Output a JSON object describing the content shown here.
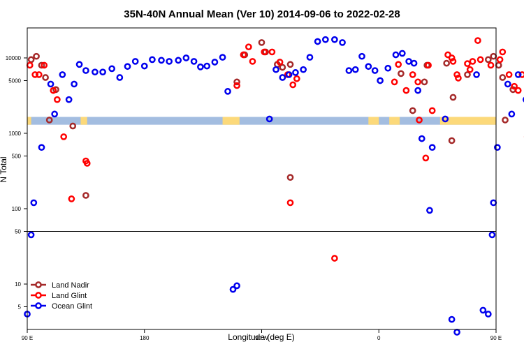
{
  "chart_data": {
    "type": "scatter",
    "title": "35N-40N Annual Mean (Ver 10)   2014-09-06 to 2022-02-28",
    "xlabel": "Longitude (deg E)",
    "ylabel": "N Total",
    "xlim": [
      90,
      450
    ],
    "ylim": [
      2.5,
      25000
    ],
    "yscale": "log",
    "x_ticks": [
      {
        "value": 90,
        "label": "90 E"
      },
      {
        "value": 180,
        "label": "180"
      },
      {
        "value": 270,
        "label": "90 W"
      },
      {
        "value": 360,
        "label": "0"
      },
      {
        "value": 450,
        "label": "90 E"
      },
      {
        "value": 540,
        "label": "180"
      }
    ],
    "y_ticks": [
      {
        "value": 5,
        "label": "5"
      },
      {
        "value": 10,
        "label": "10"
      },
      {
        "value": 50,
        "label": "50"
      },
      {
        "value": 100,
        "label": "100"
      },
      {
        "value": 500,
        "label": "500"
      },
      {
        "value": 1000,
        "label": "1000"
      },
      {
        "value": 5000,
        "label": "5000"
      },
      {
        "value": 10000,
        "label": "10000"
      }
    ],
    "reference_line": 50,
    "land_band": {
      "y_range": [
        1300,
        1650
      ],
      "ocean_color": "#a3bde0",
      "land_color": "#fcd97a",
      "land_segments": [
        [
          89,
          93
        ],
        [
          131,
          136
        ],
        [
          240,
          253
        ],
        [
          352,
          360
        ],
        [
          368,
          376
        ],
        [
          407,
          458
        ]
      ]
    },
    "legend": {
      "position": "bottom-left",
      "entries": [
        "Land Nadir",
        "Land Glint",
        "Ocean Glint"
      ]
    },
    "series": [
      {
        "name": "Land Nadir",
        "color": "#a52a2a",
        "points": [
          [
            93,
            9500
          ],
          [
            97,
            10500
          ],
          [
            101,
            8000
          ],
          [
            104,
            5500
          ],
          [
            107,
            1500
          ],
          [
            112,
            3800
          ],
          [
            125,
            1250
          ],
          [
            135,
            150
          ],
          [
            251,
            4800
          ],
          [
            257,
            11000
          ],
          [
            270,
            16000
          ],
          [
            273,
            12000
          ],
          [
            282,
            8200
          ],
          [
            286,
            7500
          ],
          [
            292,
            8200
          ],
          [
            292,
            260
          ],
          [
            377,
            6200
          ],
          [
            386,
            2000
          ],
          [
            395,
            4800
          ],
          [
            397,
            8000
          ],
          [
            412,
            8500
          ],
          [
            416,
            800
          ],
          [
            417,
            3000
          ],
          [
            428,
            6000
          ],
          [
            444,
            9500
          ],
          [
            448,
            10500
          ],
          [
            452,
            8000
          ],
          [
            455,
            5500
          ],
          [
            457,
            1500
          ],
          [
            463,
            3800
          ],
          [
            475,
            1250
          ],
          [
            486,
            150
          ]
        ]
      },
      {
        "name": "Land Glint",
        "color": "#ff0000",
        "points": [
          [
            92,
            8000
          ],
          [
            96,
            6000
          ],
          [
            99,
            6000
          ],
          [
            103,
            8000
          ],
          [
            110,
            3700
          ],
          [
            113,
            2800
          ],
          [
            118,
            900
          ],
          [
            124,
            135
          ],
          [
            135,
            430
          ],
          [
            136,
            400
          ],
          [
            251,
            4300
          ],
          [
            256,
            11000
          ],
          [
            260,
            14000
          ],
          [
            263,
            9000
          ],
          [
            272,
            12000
          ],
          [
            278,
            12000
          ],
          [
            284,
            8800
          ],
          [
            290,
            6000
          ],
          [
            294,
            4400
          ],
          [
            297,
            5300
          ],
          [
            292,
            120
          ],
          [
            326,
            22
          ],
          [
            372,
            4800
          ],
          [
            375,
            8200
          ],
          [
            381,
            3700
          ],
          [
            386,
            6000
          ],
          [
            390,
            4800
          ],
          [
            391,
            1500
          ],
          [
            396,
            470
          ],
          [
            398,
            8000
          ],
          [
            401,
            2000
          ],
          [
            413,
            11000
          ],
          [
            416,
            10000
          ],
          [
            417,
            9000
          ],
          [
            420,
            6000
          ],
          [
            421,
            5400
          ],
          [
            428,
            8400
          ],
          [
            430,
            7000
          ],
          [
            432,
            9000
          ],
          [
            436,
            17000
          ],
          [
            438,
            9500
          ],
          [
            446,
            8000
          ],
          [
            453,
            9500
          ],
          [
            455,
            12000
          ],
          [
            460,
            6000
          ],
          [
            464,
            4200
          ],
          [
            467,
            3700
          ],
          [
            470,
            6000
          ],
          [
            474,
            900
          ],
          [
            476,
            3000
          ],
          [
            479,
            2800
          ],
          [
            484,
            135
          ],
          [
            486,
            430
          ],
          [
            488,
            400
          ],
          [
            490,
            1800
          ]
        ]
      },
      {
        "name": "Ocean Glint",
        "color": "#0000ee",
        "points": [
          [
            90,
            4
          ],
          [
            93,
            45
          ],
          [
            95,
            120
          ],
          [
            101,
            650
          ],
          [
            108,
            4500
          ],
          [
            111,
            1800
          ],
          [
            117,
            6000
          ],
          [
            122,
            2800
          ],
          [
            126,
            4500
          ],
          [
            130,
            8200
          ],
          [
            135,
            6800
          ],
          [
            142,
            6500
          ],
          [
            148,
            6500
          ],
          [
            155,
            7200
          ],
          [
            161,
            5500
          ],
          [
            167,
            7700
          ],
          [
            173,
            9000
          ],
          [
            180,
            7800
          ],
          [
            186,
            9500
          ],
          [
            193,
            9300
          ],
          [
            199,
            9000
          ],
          [
            206,
            9300
          ],
          [
            212,
            10000
          ],
          [
            218,
            9000
          ],
          [
            223,
            7600
          ],
          [
            228,
            7800
          ],
          [
            234,
            8800
          ],
          [
            240,
            10200
          ],
          [
            244,
            3600
          ],
          [
            248,
            8.5
          ],
          [
            251,
            9.5
          ],
          [
            276,
            1550
          ],
          [
            281,
            7000
          ],
          [
            286,
            5500
          ],
          [
            291,
            6000
          ],
          [
            296,
            6400
          ],
          [
            302,
            7000
          ],
          [
            307,
            10200
          ],
          [
            313,
            16500
          ],
          [
            319,
            17500
          ],
          [
            326,
            17500
          ],
          [
            332,
            16000
          ],
          [
            337,
            6800
          ],
          [
            342,
            7000
          ],
          [
            347,
            10500
          ],
          [
            352,
            7700
          ],
          [
            357,
            6800
          ],
          [
            361,
            5000
          ],
          [
            367,
            7300
          ],
          [
            373,
            11000
          ],
          [
            378,
            11500
          ],
          [
            383,
            9000
          ],
          [
            387,
            8500
          ],
          [
            390,
            3700
          ],
          [
            393,
            850
          ],
          [
            399,
            95
          ],
          [
            401,
            650
          ],
          [
            411,
            1550
          ],
          [
            416,
            3.4
          ],
          [
            420,
            2.3
          ],
          [
            435,
            6000
          ],
          [
            440,
            4.5
          ],
          [
            444,
            4
          ],
          [
            447,
            45
          ],
          [
            448,
            120
          ],
          [
            451,
            650
          ],
          [
            459,
            4500
          ],
          [
            462,
            1800
          ],
          [
            467,
            6000
          ],
          [
            473,
            2800
          ]
        ]
      }
    ]
  }
}
